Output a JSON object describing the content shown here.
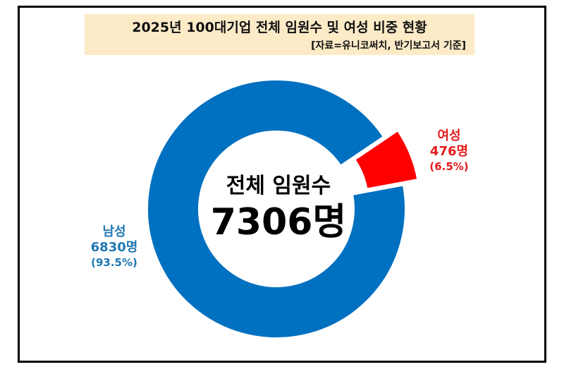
{
  "header": {
    "title": "2025년 100대기업 전체 임원수 및 여성 비중 현황",
    "source": "[자료=유니코써치, 반기보고서 기준]"
  },
  "center": {
    "label": "전체 임원수",
    "value": "7306명"
  },
  "labels": {
    "female": {
      "name": "여성",
      "count": "476명",
      "percent": "(6.5%)"
    },
    "male": {
      "name": "남성",
      "count": "6830명",
      "percent": "(93.5%)"
    }
  },
  "colors": {
    "male": "#0070c0",
    "female": "#ff0000",
    "female_label": "#e41a1c",
    "male_label": "#1f78b4",
    "title_bg": "#fdebc8"
  },
  "chart_data": {
    "type": "pie",
    "donut": true,
    "title": "2025년 100대기업 전체 임원수 및 여성 비중 현황",
    "total": 7306,
    "slices": [
      {
        "name": "여성",
        "value": 476,
        "percent": 6.5,
        "exploded": true
      },
      {
        "name": "남성",
        "value": 6830,
        "percent": 93.5
      }
    ],
    "legend": "none"
  }
}
